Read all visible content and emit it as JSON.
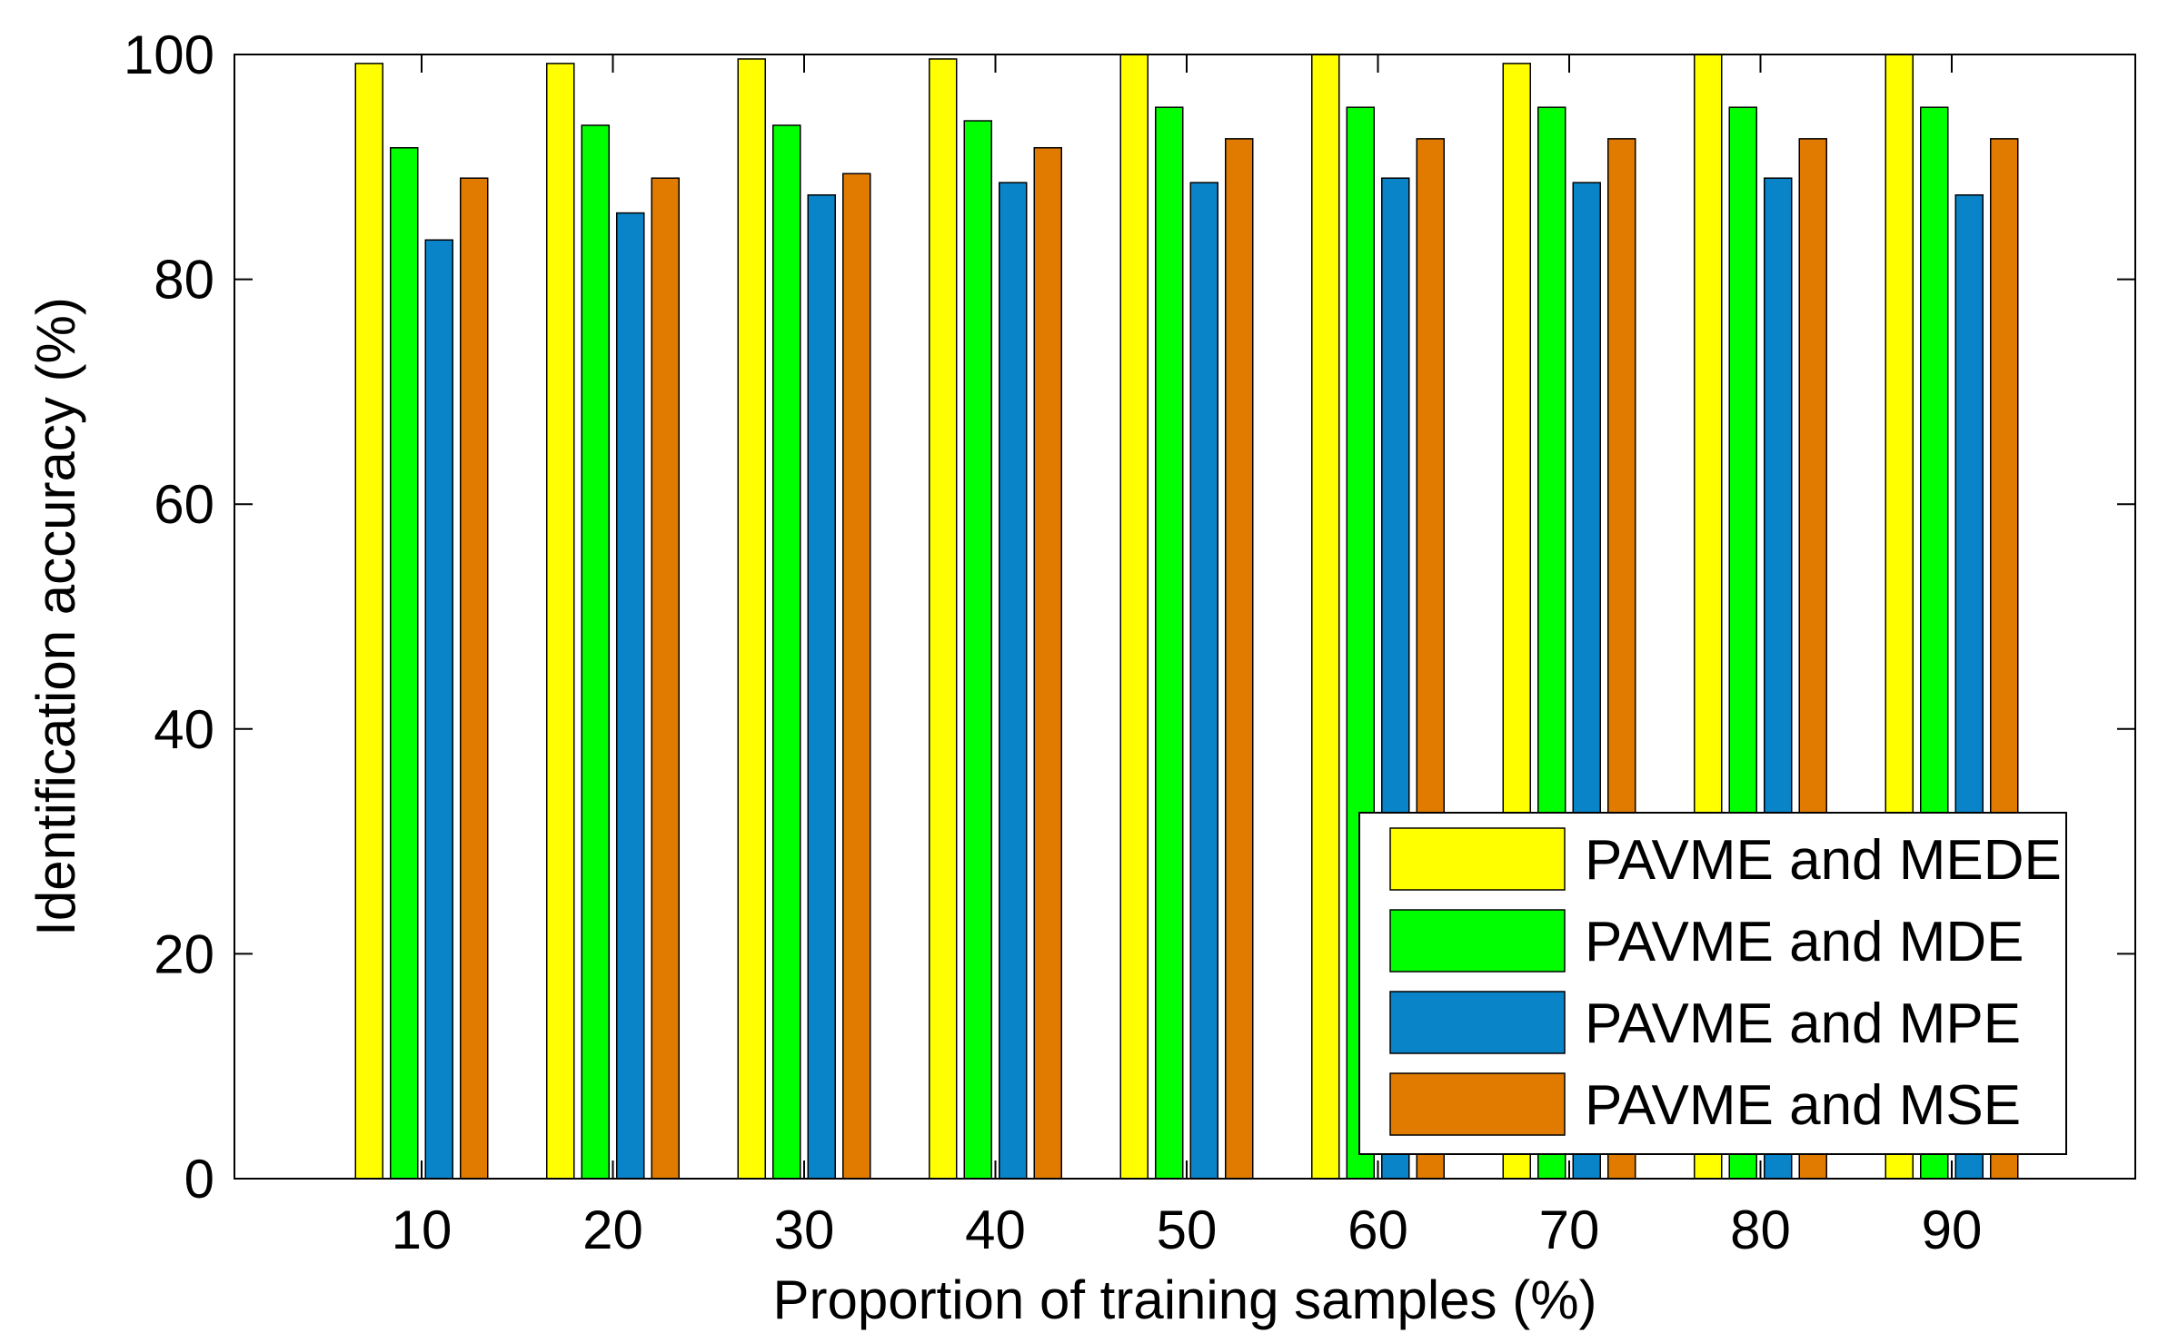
{
  "chart_data": {
    "type": "bar",
    "title": "",
    "xlabel": "Proportion of training samples (%)",
    "ylabel": "Identification accuracy (%)",
    "categories": [
      "10",
      "20",
      "30",
      "40",
      "50",
      "60",
      "70",
      "80",
      "90"
    ],
    "ylim": [
      0,
      100
    ],
    "yticks": [
      "0",
      "20",
      "40",
      "60",
      "80",
      "100"
    ],
    "grid": false,
    "legend_position": "bottom-right",
    "series": [
      {
        "name": "PAVME and MEDE",
        "color": "#ffff00",
        "values": [
          99.2,
          99.2,
          99.6,
          99.6,
          100,
          100,
          99.2,
          100,
          100
        ]
      },
      {
        "name": "PAVME and MDE",
        "color": "#00ff00",
        "values": [
          91.7,
          93.7,
          93.7,
          94.1,
          95.3,
          95.3,
          95.3,
          95.3,
          95.3
        ]
      },
      {
        "name": "PAVME and MPE",
        "color": "#0a84c8",
        "values": [
          83.5,
          85.9,
          87.5,
          88.6,
          88.6,
          89.0,
          88.6,
          89.0,
          87.5
        ]
      },
      {
        "name": "PAVME and MSE",
        "color": "#e07b00",
        "values": [
          89.0,
          89.0,
          89.4,
          91.7,
          92.5,
          92.5,
          92.5,
          92.5,
          92.5
        ]
      }
    ]
  }
}
